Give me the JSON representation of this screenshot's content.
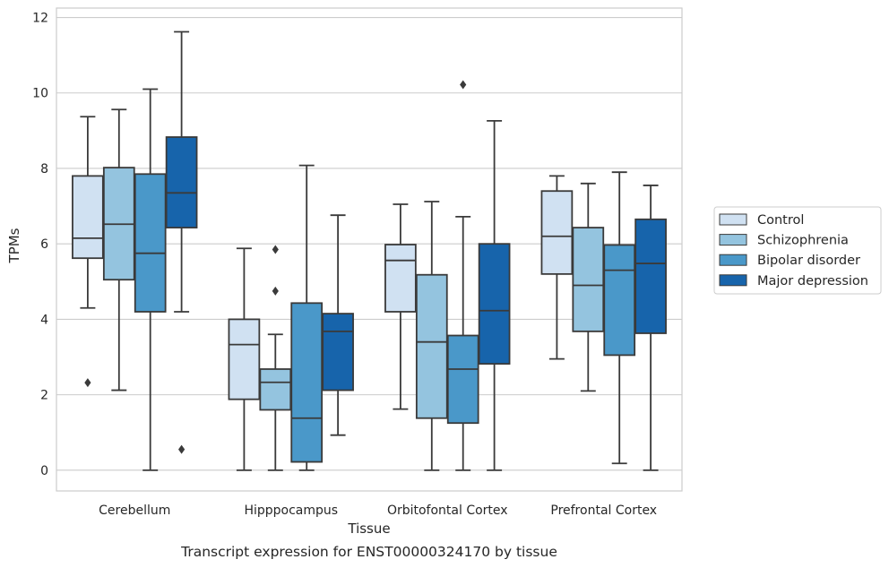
{
  "chart_data": {
    "type": "box",
    "caption": "Transcript expression for ENST00000324170 by tissue",
    "xlabel": "Tissue",
    "ylabel": "TPMs",
    "ylim": [
      -0.55,
      12.25
    ],
    "yticks": [
      0,
      2,
      4,
      6,
      8,
      10,
      12
    ],
    "grid": true,
    "legend_position": "right",
    "categories": [
      "Cerebellum",
      "Hipppocampus",
      "Orbitofontal Cortex",
      "Prefrontal Cortex"
    ],
    "series": [
      {
        "name": "Control",
        "color": "#d0e1f2",
        "boxes": [
          {
            "whisker_low": 4.3,
            "q1": 5.62,
            "median": 6.15,
            "q3": 7.8,
            "whisker_high": 9.37,
            "outliers": [
              2.32
            ]
          },
          {
            "whisker_low": 0.0,
            "q1": 1.88,
            "median": 3.33,
            "q3": 4.0,
            "whisker_high": 5.88,
            "outliers": []
          },
          {
            "whisker_low": 1.62,
            "q1": 4.2,
            "median": 5.56,
            "q3": 5.98,
            "whisker_high": 7.05,
            "outliers": []
          },
          {
            "whisker_low": 2.95,
            "q1": 5.2,
            "median": 6.2,
            "q3": 7.4,
            "whisker_high": 7.8,
            "outliers": []
          }
        ]
      },
      {
        "name": "Schizophrenia",
        "color": "#94c4df",
        "boxes": [
          {
            "whisker_low": 2.12,
            "q1": 5.05,
            "median": 6.52,
            "q3": 8.02,
            "whisker_high": 9.56,
            "outliers": []
          },
          {
            "whisker_low": 0.0,
            "q1": 1.6,
            "median": 2.33,
            "q3": 2.68,
            "whisker_high": 3.6,
            "outliers": [
              4.75,
              5.85
            ]
          },
          {
            "whisker_low": 0.0,
            "q1": 1.38,
            "median": 3.4,
            "q3": 5.18,
            "whisker_high": 7.12,
            "outliers": []
          },
          {
            "whisker_low": 2.1,
            "q1": 3.68,
            "median": 4.9,
            "q3": 6.43,
            "whisker_high": 7.6,
            "outliers": []
          }
        ]
      },
      {
        "name": "Bipolar disorder",
        "color": "#4a98c9",
        "boxes": [
          {
            "whisker_low": 0.0,
            "q1": 4.2,
            "median": 5.75,
            "q3": 7.85,
            "whisker_high": 10.1,
            "outliers": []
          },
          {
            "whisker_low": 0.0,
            "q1": 0.22,
            "median": 1.38,
            "q3": 4.43,
            "whisker_high": 8.08,
            "outliers": []
          },
          {
            "whisker_low": 0.0,
            "q1": 1.25,
            "median": 2.68,
            "q3": 3.57,
            "whisker_high": 6.72,
            "outliers": [
              10.22
            ]
          },
          {
            "whisker_low": 0.18,
            "q1": 3.05,
            "median": 5.3,
            "q3": 5.97,
            "whisker_high": 7.9,
            "outliers": []
          }
        ]
      },
      {
        "name": "Major depression",
        "color": "#1764ab",
        "boxes": [
          {
            "whisker_low": 4.2,
            "q1": 6.43,
            "median": 7.35,
            "q3": 8.83,
            "whisker_high": 11.62,
            "outliers": [
              0.55
            ]
          },
          {
            "whisker_low": 0.93,
            "q1": 2.12,
            "median": 3.68,
            "q3": 4.15,
            "whisker_high": 6.76,
            "outliers": []
          },
          {
            "whisker_low": 0.0,
            "q1": 2.82,
            "median": 4.23,
            "q3": 6.0,
            "whisker_high": 9.26,
            "outliers": []
          },
          {
            "whisker_low": 0.0,
            "q1": 3.63,
            "median": 5.48,
            "q3": 6.65,
            "whisker_high": 7.55,
            "outliers": []
          }
        ]
      }
    ]
  },
  "style": {
    "grid_color": "#cccccc",
    "frame_color": "#cccccc",
    "line_color": "#3a3a3a"
  }
}
